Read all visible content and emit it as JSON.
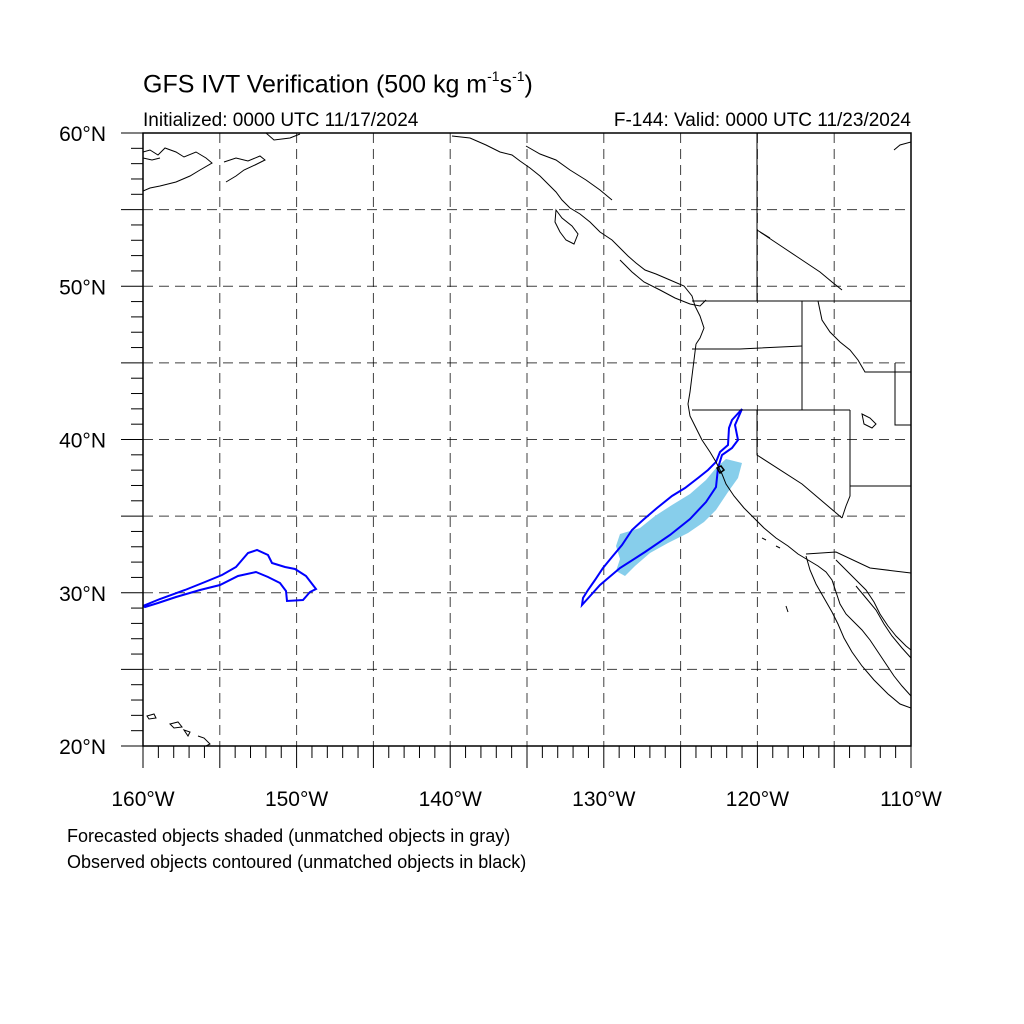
{
  "title": {
    "main": "GFS IVT Verification (500 kg m",
    "exp1": "-1",
    "mid": "s",
    "exp2": "-1",
    "end": ")"
  },
  "initialized": "Initialized: 0000 UTC 11/17/2024",
  "valid": "F-144: Valid: 0000 UTC 11/23/2024",
  "legend": {
    "line1": "Forecasted objects shaded (unmatched objects in gray)",
    "line2": "Observed objects contoured (unmatched objects in black)"
  },
  "map": {
    "lon_range": [
      -160,
      -110
    ],
    "lat_range": [
      20,
      60
    ],
    "lon_grid": [
      -155,
      -150,
      -145,
      -140,
      -135,
      -130,
      -125,
      -120,
      -115
    ],
    "lat_grid": [
      25,
      30,
      35,
      40,
      45,
      50,
      55
    ],
    "lon_labels": [
      {
        "lon": -160,
        "text": "160°W"
      },
      {
        "lon": -150,
        "text": "150°W"
      },
      {
        "lon": -140,
        "text": "140°W"
      },
      {
        "lon": -130,
        "text": "130°W"
      },
      {
        "lon": -120,
        "text": "120°W"
      },
      {
        "lon": -110,
        "text": "110°W"
      }
    ],
    "lat_labels": [
      {
        "lat": 20,
        "text": "20°N"
      },
      {
        "lat": 30,
        "text": "30°N"
      },
      {
        "lat": 40,
        "text": "40°N"
      },
      {
        "lat": 50,
        "text": "50°N"
      },
      {
        "lat": 60,
        "text": "60°N"
      }
    ],
    "colors": {
      "forecast_fill": "#87ceeb",
      "observed_contour": "#0000ff",
      "unmatched_contour": "#000000",
      "coast": "#000000",
      "grid": "#000000"
    }
  }
}
